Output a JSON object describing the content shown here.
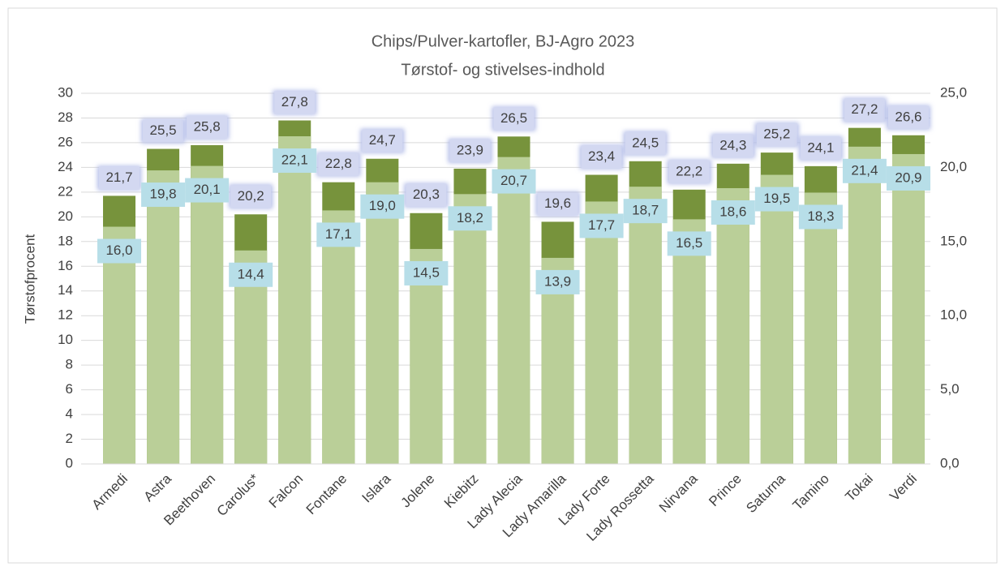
{
  "chart_data": {
    "type": "bar",
    "title": "Chips/Pulver-kartofler, BJ-Agro 2023",
    "subtitle": "Tørstof- og stivelses-indhold",
    "y_label": "Tørstofprocent",
    "categories": [
      "Armedi",
      "Astra",
      "Beethoven",
      "Carolus*",
      "Falcon",
      "Fontane",
      "Islara",
      "Jolene",
      "Kiebitz",
      "Lady Alecia",
      "Lady Amarilla",
      "Lady Forte",
      "Lady Rossetta",
      "Nirvana",
      "Prince",
      "Saturna",
      "Tamino",
      "Tokai",
      "Verdi"
    ],
    "series": [
      {
        "color": "#77933c",
        "axis": "y",
        "values": [
          21.7,
          25.5,
          25.8,
          20.2,
          27.8,
          22.8,
          24.7,
          20.3,
          23.9,
          26.5,
          19.6,
          23.4,
          24.5,
          22.2,
          24.3,
          25.2,
          24.1,
          27.2,
          26.6
        ],
        "value_labels": [
          "21,7",
          "25,5",
          "25,8",
          "20,2",
          "27,8",
          "22,8",
          "24,7",
          "20,3",
          "23,9",
          "26,5",
          "19,6",
          "23,4",
          "24,5",
          "22,2",
          "24,3",
          "25,2",
          "24,1",
          "27,2",
          "26,6"
        ]
      },
      {
        "color": "#bacf98",
        "axis": "y2",
        "values": [
          16.0,
          19.8,
          20.1,
          14.4,
          22.1,
          17.1,
          19.0,
          14.5,
          18.2,
          20.7,
          13.9,
          17.7,
          18.7,
          16.5,
          18.6,
          19.5,
          18.3,
          21.4,
          20.9
        ],
        "value_labels": [
          "16,0",
          "19,8",
          "20,1",
          "14,4",
          "22,1",
          "17,1",
          "19,0",
          "14,5",
          "18,2",
          "20,7",
          "13,9",
          "17,7",
          "18,7",
          "16,5",
          "18,6",
          "19,5",
          "18,3",
          "21,4",
          "20,9"
        ]
      }
    ],
    "ylim": [
      0,
      30
    ],
    "yticks": [
      0,
      2,
      4,
      6,
      8,
      10,
      12,
      14,
      16,
      18,
      20,
      22,
      24,
      26,
      28,
      30
    ],
    "y2lim": [
      0,
      25
    ],
    "y2ticks": [
      {
        "value": 0,
        "label": "0,0"
      },
      {
        "value": 5,
        "label": "5,0"
      },
      {
        "value": 10,
        "label": "10,0"
      },
      {
        "value": 15,
        "label": "15,0"
      },
      {
        "value": 20,
        "label": "20,0"
      },
      {
        "value": 25,
        "label": "25,0"
      }
    ],
    "grid": true
  }
}
